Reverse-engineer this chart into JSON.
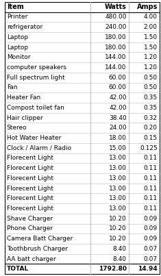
{
  "headers": [
    "Item",
    "Watts",
    "Amps"
  ],
  "rows": [
    [
      "Printer",
      "480.00",
      "4.00"
    ],
    [
      "refrigerator",
      "240.00",
      "2.00"
    ],
    [
      "Laptop",
      "180.00",
      "1.50"
    ],
    [
      "Laptop",
      "180.00",
      "1.50"
    ],
    [
      "Monitor",
      "144.00",
      "1.20"
    ],
    [
      "computer speakers",
      "144.00",
      "1.20"
    ],
    [
      "Full spectrum light",
      "60.00",
      "0.50"
    ],
    [
      "Fan",
      "60.00",
      "0.50"
    ],
    [
      "Heater Fan",
      "42.00",
      "0.35"
    ],
    [
      "Compost toilet fan",
      "42.00",
      "0.35"
    ],
    [
      "Hair clipper",
      "38.40",
      "0.32"
    ],
    [
      "Stereo",
      "24.00",
      "0.20"
    ],
    [
      "Hot Water Heater",
      "18.00",
      "0.15"
    ],
    [
      "Clock / Alarm / Radio",
      "15.00",
      "0.125"
    ],
    [
      "Florecent Light",
      "13.00",
      "0.11"
    ],
    [
      "Florecent Light",
      "13.00",
      "0.11"
    ],
    [
      "Florecent Light",
      "13.00",
      "0.11"
    ],
    [
      "Florecent Light",
      "13.00",
      "0.11"
    ],
    [
      "Florecent Light",
      "13.00",
      "0.11"
    ],
    [
      "Florecent Light",
      "13.00",
      "0.11"
    ],
    [
      "Shave Charger",
      "10.20",
      "0.09"
    ],
    [
      "Phone Charger",
      "10.20",
      "0.09"
    ],
    [
      "Camera Batt Charger",
      "10.20",
      "0.09"
    ],
    [
      "Toothbrush Charger",
      "8.40",
      "0.07"
    ],
    [
      "AA batt charger",
      "8.40",
      "0.07"
    ]
  ],
  "total_row": [
    "TOTAL",
    "1792.80",
    "14.94"
  ],
  "header_fontsize": 7.0,
  "row_fontsize": 6.5,
  "fig_width": 2.35,
  "fig_height": 4.03,
  "dpi": 100
}
